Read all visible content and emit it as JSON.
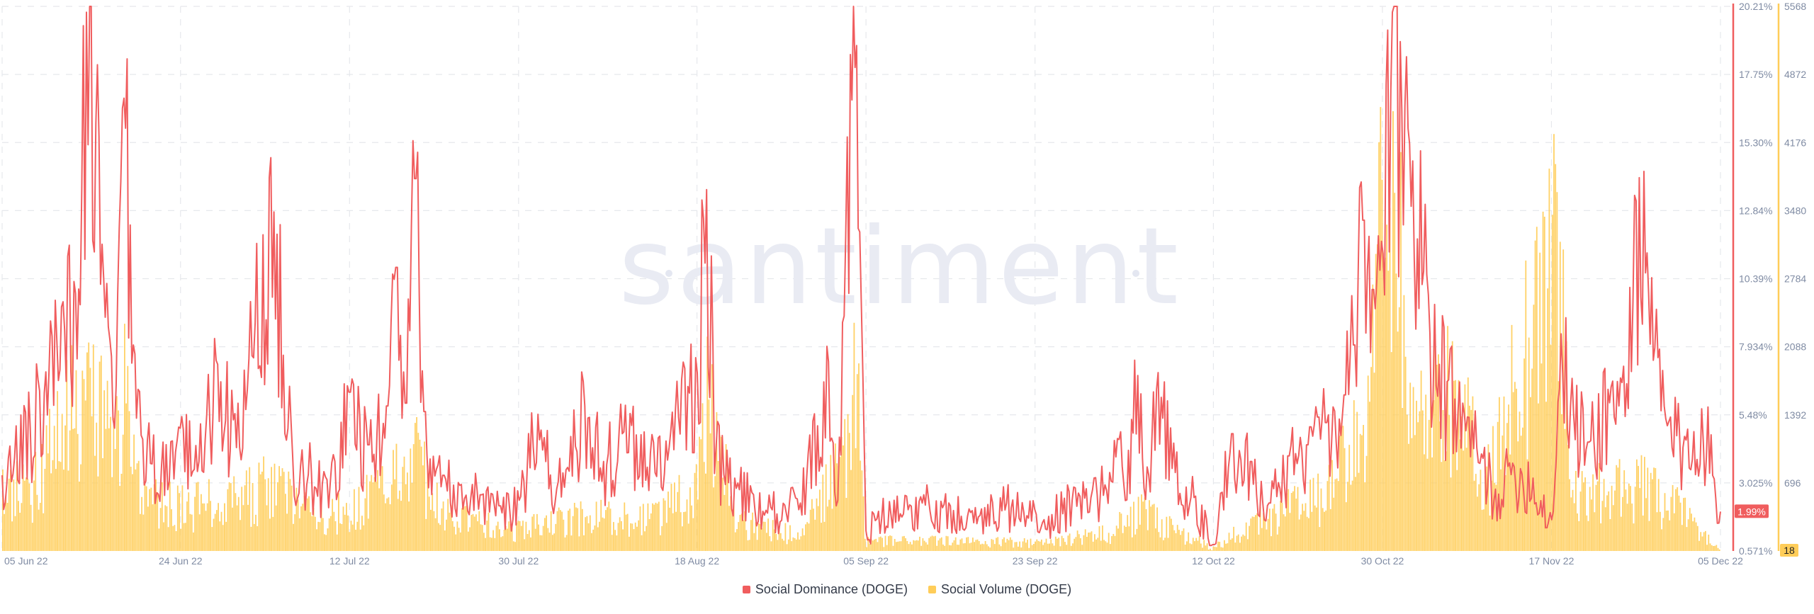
{
  "colors": {
    "dominance": "#f05d5e",
    "volume": "#ffcd59",
    "grid": "#e6e8ec",
    "ticks": "#7f8ba3"
  },
  "watermark": "santiment",
  "chart_data": {
    "type": "line",
    "x": {
      "ticks": [
        "05 Jun 22",
        "24 Jun 22",
        "12 Jul 22",
        "30 Jul 22",
        "18 Aug 22",
        "05 Sep 22",
        "23 Sep 22",
        "12 Oct 22",
        "30 Oct 22",
        "17 Nov 22",
        "05 Dec 22"
      ],
      "start": "05 Jun 22",
      "end": "05 Dec 22"
    },
    "y_left": {
      "ticks": [
        "0.571%",
        "3.025%",
        "5.48%",
        "7.934%",
        "10.39%",
        "12.84%",
        "15.30%",
        "17.75%",
        "20.21%"
      ],
      "range": [
        0.571,
        20.21
      ],
      "unit": "%"
    },
    "y_right": {
      "ticks": [
        "18",
        "696",
        "1392",
        "2088",
        "2784",
        "3480",
        "4176",
        "4872",
        "5568"
      ],
      "range": [
        18,
        5568
      ]
    },
    "grid": true,
    "legend_position": "bottom-center",
    "series": [
      {
        "name": "Social Dominance (DOGE)",
        "type": "line",
        "axis": "left",
        "current_value_label": "1.99%",
        "points": [
          [
            "05 Jun 22",
            3.3
          ],
          [
            "08 Jun 22",
            5.0
          ],
          [
            "10 Jun 22",
            7.0
          ],
          [
            "12 Jun 22",
            11.2
          ],
          [
            "13 Jun 22",
            7.5
          ],
          [
            "14 Jun 22",
            20.0
          ],
          [
            "15 Jun 22",
            16.0
          ],
          [
            "16 Jun 22",
            9.0
          ],
          [
            "17 Jun 22",
            5.0
          ],
          [
            "18 Jun 22",
            16.9
          ],
          [
            "19 Jun 22",
            8.0
          ],
          [
            "20 Jun 22",
            4.6
          ],
          [
            "22 Jun 22",
            3.6
          ],
          [
            "24 Jun 22",
            5.0
          ],
          [
            "26 Jun 22",
            3.8
          ],
          [
            "28 Jun 22",
            7.3
          ],
          [
            "30 Jun 22",
            4.3
          ],
          [
            "02 Jul 22",
            8.8
          ],
          [
            "04 Jul 22",
            12.8
          ],
          [
            "06 Jul 22",
            4.0
          ],
          [
            "08 Jul 22",
            3.4
          ],
          [
            "10 Jul 22",
            3.0
          ],
          [
            "12 Jul 22",
            6.3
          ],
          [
            "14 Jul 22",
            4.4
          ],
          [
            "16 Jul 22",
            5.8
          ],
          [
            "17 Jul 22",
            10.8
          ],
          [
            "18 Jul 22",
            5.9
          ],
          [
            "19 Jul 22",
            14.0
          ],
          [
            "20 Jul 22",
            5.6
          ],
          [
            "22 Jul 22",
            3.3
          ],
          [
            "26 Jul 22",
            2.6
          ],
          [
            "28 Jul 22",
            2.2
          ],
          [
            "30 Jul 22",
            2.4
          ],
          [
            "01 Aug 22",
            5.5
          ],
          [
            "03 Aug 22",
            2.8
          ],
          [
            "06 Aug 22",
            5.8
          ],
          [
            "08 Aug 22",
            3.8
          ],
          [
            "10 Aug 22",
            4.8
          ],
          [
            "13 Aug 22",
            4.1
          ],
          [
            "15 Aug 22",
            4.3
          ],
          [
            "17 Aug 22",
            6.5
          ],
          [
            "18 Aug 22",
            7.0
          ],
          [
            "19 Aug 22",
            13.6
          ],
          [
            "20 Aug 22",
            4.3
          ],
          [
            "22 Aug 22",
            3.2
          ],
          [
            "25 Aug 22",
            2.0
          ],
          [
            "29 Aug 22",
            2.3
          ],
          [
            "01 Sep 22",
            7.4
          ],
          [
            "02 Sep 22",
            2.4
          ],
          [
            "03 Sep 22",
            15.5
          ],
          [
            "04 Sep 22",
            18.8
          ],
          [
            "05 Sep 22",
            1.3
          ],
          [
            "08 Sep 22",
            2.4
          ],
          [
            "11 Sep 22",
            2.3
          ],
          [
            "14 Sep 22",
            2.2
          ],
          [
            "17 Sep 22",
            1.8
          ],
          [
            "20 Sep 22",
            2.3
          ],
          [
            "24 Sep 22",
            1.7
          ],
          [
            "27 Sep 22",
            2.4
          ],
          [
            "29 Sep 22",
            2.5
          ],
          [
            "01 Oct 22",
            3.4
          ],
          [
            "03 Oct 22",
            4.2
          ],
          [
            "04 Oct 22",
            6.9
          ],
          [
            "05 Oct 22",
            3.6
          ],
          [
            "06 Oct 22",
            6.4
          ],
          [
            "08 Oct 22",
            3.4
          ],
          [
            "10 Oct 22",
            2.5
          ],
          [
            "12 Oct 22",
            0.8
          ],
          [
            "14 Oct 22",
            4.8
          ],
          [
            "16 Oct 22",
            3.8
          ],
          [
            "18 Oct 22",
            2.3
          ],
          [
            "20 Oct 22",
            4.0
          ],
          [
            "22 Oct 22",
            4.4
          ],
          [
            "24 Oct 22",
            5.2
          ],
          [
            "26 Oct 22",
            6.2
          ],
          [
            "27 Oct 22",
            8.0
          ],
          [
            "28 Oct 22",
            12.5
          ],
          [
            "29 Oct 22",
            10.0
          ],
          [
            "30 Oct 22",
            11.3
          ],
          [
            "31 Oct 22",
            20.0
          ],
          [
            "01 Nov 22",
            16.5
          ],
          [
            "02 Nov 22",
            13.0
          ],
          [
            "03 Nov 22",
            15.0
          ],
          [
            "04 Nov 22",
            8.4
          ],
          [
            "05 Nov 22",
            7.3
          ],
          [
            "07 Nov 22",
            5.6
          ],
          [
            "09 Nov 22",
            4.3
          ],
          [
            "11 Nov 22",
            2.8
          ],
          [
            "13 Nov 22",
            3.6
          ],
          [
            "15 Nov 22",
            3.2
          ],
          [
            "17 Nov 22",
            1.7
          ],
          [
            "18 Nov 22",
            8.4
          ],
          [
            "19 Nov 22",
            5.8
          ],
          [
            "21 Nov 22",
            4.5
          ],
          [
            "23 Nov 22",
            6.4
          ],
          [
            "25 Nov 22",
            6.6
          ],
          [
            "26 Nov 22",
            13.2
          ],
          [
            "27 Nov 22",
            10.6
          ],
          [
            "29 Nov 22",
            5.8
          ],
          [
            "01 Dec 22",
            4.3
          ],
          [
            "03 Dec 22",
            5.7
          ],
          [
            "05 Dec 22",
            1.99
          ]
        ]
      },
      {
        "name": "Social Volume (DOGE)",
        "type": "area",
        "axis": "right",
        "current_value_label": "18",
        "points": [
          [
            "05 Jun 22",
            700
          ],
          [
            "09 Jun 22",
            900
          ],
          [
            "12 Jun 22",
            1700
          ],
          [
            "14 Jun 22",
            1800
          ],
          [
            "16 Jun 22",
            1600
          ],
          [
            "18 Jun 22",
            2000
          ],
          [
            "20 Jun 22",
            700
          ],
          [
            "24 Jun 22",
            550
          ],
          [
            "30 Jun 22",
            650
          ],
          [
            "04 Jul 22",
            850
          ],
          [
            "08 Jul 22",
            450
          ],
          [
            "12 Jul 22",
            550
          ],
          [
            "17 Jul 22",
            950
          ],
          [
            "19 Jul 22",
            1300
          ],
          [
            "22 Jul 22",
            450
          ],
          [
            "30 Jul 22",
            280
          ],
          [
            "06 Aug 22",
            450
          ],
          [
            "13 Aug 22",
            420
          ],
          [
            "18 Aug 22",
            800
          ],
          [
            "19 Aug 22",
            2100
          ],
          [
            "22 Aug 22",
            400
          ],
          [
            "29 Aug 22",
            200
          ],
          [
            "03 Sep 22",
            1300
          ],
          [
            "04 Sep 22",
            2200
          ],
          [
            "05 Sep 22",
            150
          ],
          [
            "14 Sep 22",
            140
          ],
          [
            "24 Sep 22",
            120
          ],
          [
            "01 Oct 22",
            250
          ],
          [
            "04 Oct 22",
            500
          ],
          [
            "12 Oct 22",
            60
          ],
          [
            "16 Oct 22",
            350
          ],
          [
            "24 Oct 22",
            700
          ],
          [
            "28 Oct 22",
            1600
          ],
          [
            "31 Oct 22",
            5500
          ],
          [
            "02 Nov 22",
            1600
          ],
          [
            "06 Nov 22",
            2200
          ],
          [
            "10 Nov 22",
            800
          ],
          [
            "18 Nov 22",
            4100
          ],
          [
            "19 Nov 22",
            650
          ],
          [
            "26 Nov 22",
            850
          ],
          [
            "01 Dec 22",
            500
          ],
          [
            "05 Dec 22",
            18
          ]
        ]
      }
    ]
  },
  "legend": {
    "dominance_label": "Social Dominance (DOGE)",
    "volume_label": "Social Volume (DOGE)"
  }
}
